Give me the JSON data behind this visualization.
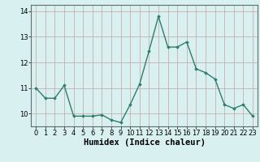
{
  "x": [
    0,
    1,
    2,
    3,
    4,
    5,
    6,
    7,
    8,
    9,
    10,
    11,
    12,
    13,
    14,
    15,
    16,
    17,
    18,
    19,
    20,
    21,
    22,
    23
  ],
  "y": [
    11.0,
    10.6,
    10.6,
    11.1,
    9.9,
    9.9,
    9.9,
    9.95,
    9.75,
    9.65,
    10.35,
    11.15,
    12.45,
    13.8,
    12.6,
    12.6,
    12.8,
    11.75,
    11.6,
    11.35,
    10.35,
    10.2,
    10.35,
    9.9
  ],
  "line_color": "#2e7d6e",
  "marker": "D",
  "marker_size": 1.8,
  "bg_color": "#d8f0f0",
  "grid_color": "#c8a0a0",
  "xlabel": "Humidex (Indice chaleur)",
  "ylim": [
    9.5,
    14.25
  ],
  "xlim": [
    -0.5,
    23.5
  ],
  "yticks": [
    10,
    11,
    12,
    13,
    14
  ],
  "xticks": [
    0,
    1,
    2,
    3,
    4,
    5,
    6,
    7,
    8,
    9,
    10,
    11,
    12,
    13,
    14,
    15,
    16,
    17,
    18,
    19,
    20,
    21,
    22,
    23
  ],
  "tick_label_fontsize": 6,
  "xlabel_fontsize": 7.5,
  "linewidth": 1.0
}
